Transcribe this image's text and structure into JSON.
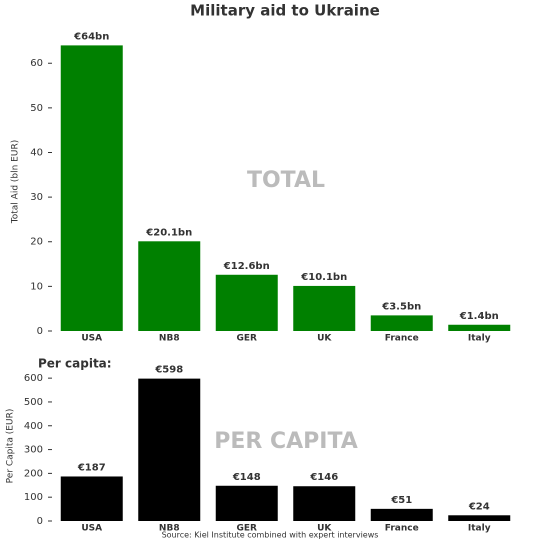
{
  "chart_data": [
    {
      "type": "bar",
      "title": "Military aid to Ukraine",
      "y_label": "Total Aid (bln EUR)",
      "watermark": "TOTAL",
      "categories": [
        "USA",
        "NB8",
        "GER",
        "UK",
        "France",
        "Italy"
      ],
      "values": [
        64,
        20.1,
        12.6,
        10.1,
        3.5,
        1.4
      ],
      "value_labels": [
        "€64bn",
        "€20.1bn",
        "€12.6bn",
        "€10.1bn",
        "€3.5bn",
        "€1.4bn"
      ],
      "color": "#008000",
      "ylim": [
        0,
        67
      ],
      "yticks": [
        0,
        10,
        20,
        30,
        40,
        50,
        60
      ]
    },
    {
      "type": "bar",
      "title": "Per capita:",
      "y_label": "Per Capita (EUR)",
      "watermark": "PER CAPITA",
      "categories": [
        "USA",
        "NB8",
        "GER",
        "UK",
        "France",
        "Italy"
      ],
      "values": [
        187,
        598,
        148,
        146,
        51,
        24
      ],
      "value_labels": [
        "€187",
        "€598",
        "€148",
        "€146",
        "€51",
        "€24"
      ],
      "color": "#000000",
      "ylim": [
        0,
        630
      ],
      "yticks": [
        0,
        100,
        200,
        300,
        400,
        500,
        600
      ],
      "source": "Source: Kiel Institute combined with expert interviews"
    }
  ]
}
